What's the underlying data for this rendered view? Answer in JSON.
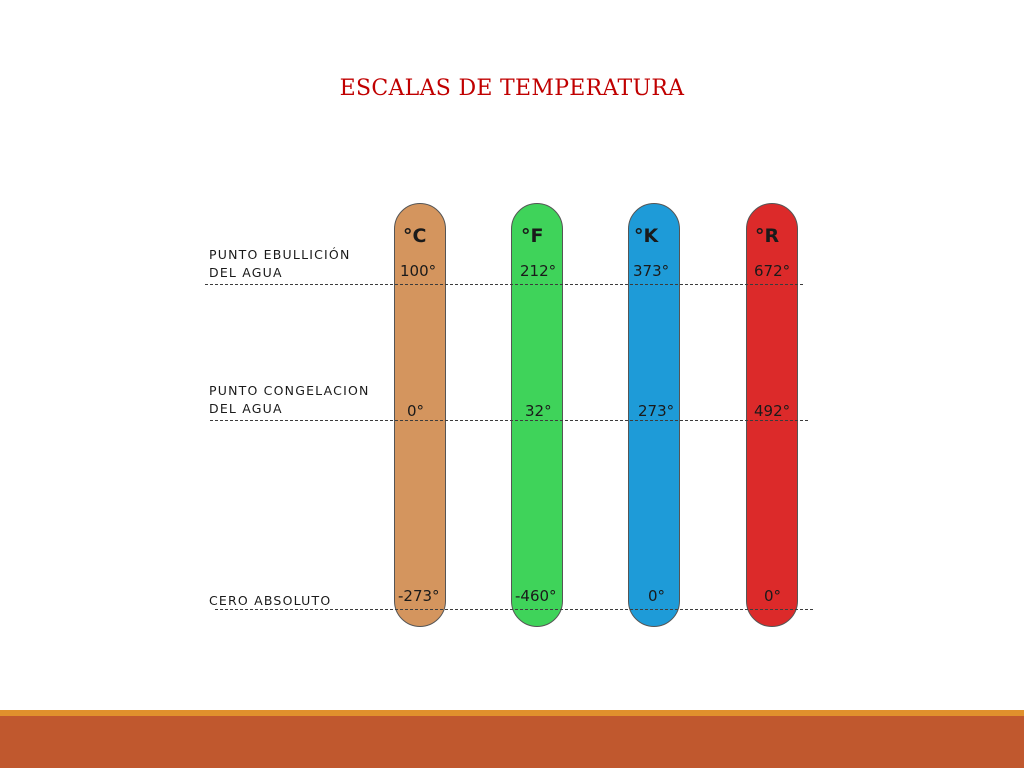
{
  "title": "ESCALAS DE TEMPERATURA",
  "reference_points": [
    {
      "lines": [
        "PUNTO EBULLICIÓN",
        "DEL  AGUA"
      ]
    },
    {
      "lines": [
        "PUNTO CONGELACION",
        "DEL  AGUA"
      ]
    },
    {
      "lines": [
        "CERO ABSOLUTO"
      ]
    }
  ],
  "scales": [
    {
      "unit": "°C",
      "color": "#d4955e",
      "values": [
        "100°",
        "0°",
        "-273°"
      ]
    },
    {
      "unit": "°F",
      "color": "#3fd35a",
      "values": [
        "212°",
        "32°",
        "-460°"
      ]
    },
    {
      "unit": "°K",
      "color": "#1e9bd8",
      "values": [
        "373°",
        "273°",
        "0°"
      ]
    },
    {
      "unit": "°R",
      "color": "#dc2a2a",
      "values": [
        "672°",
        "492°",
        "0°"
      ]
    }
  ],
  "theme": {
    "title_color": "#c00000",
    "footer_color": "#c0582e",
    "accent_color": "#e0902c"
  }
}
